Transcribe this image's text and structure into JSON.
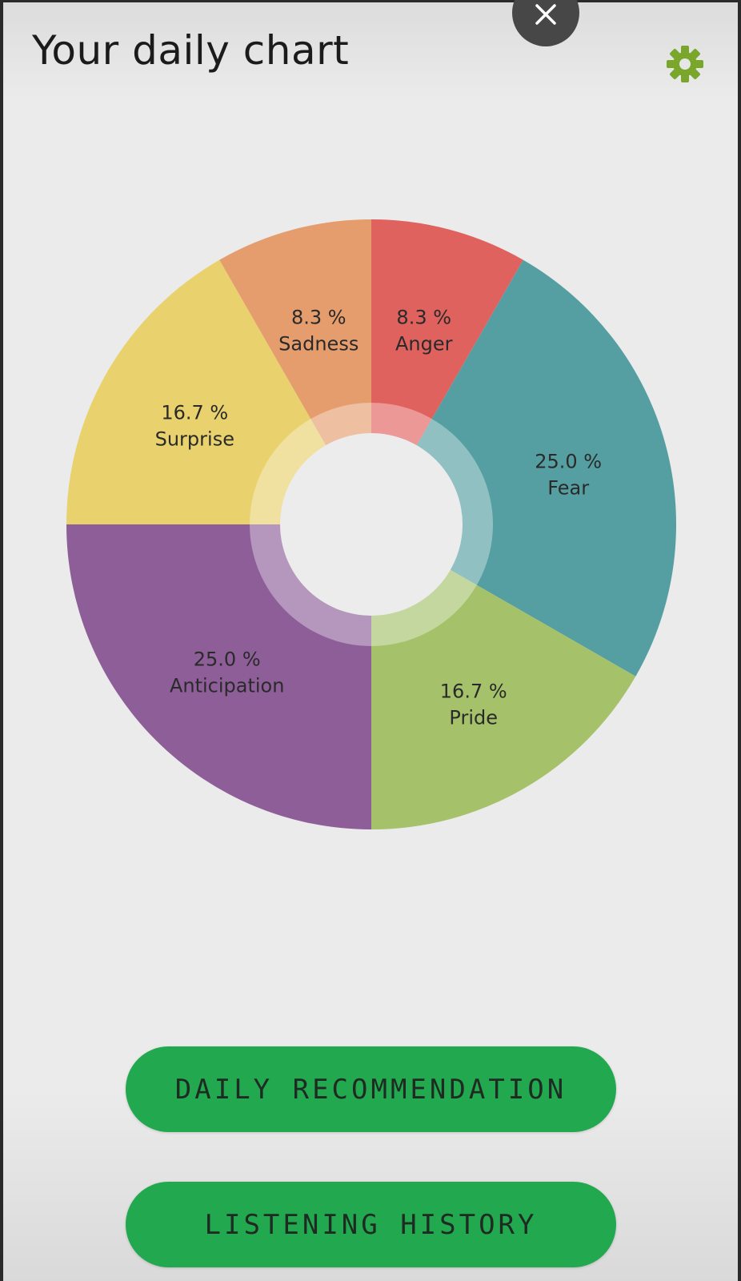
{
  "header": {
    "title": "Your daily chart"
  },
  "icons": {
    "settings": "gear-icon",
    "close": "close-icon"
  },
  "colors": {
    "accent_green": "#22a94f",
    "settings_icon": "#7aa72b"
  },
  "chart_data": {
    "type": "pie",
    "variant": "donut",
    "title": "",
    "categories": [
      "Anger",
      "Fear",
      "Pride",
      "Anticipation",
      "Surprise",
      "Sadness"
    ],
    "values": [
      8.3,
      25.0,
      16.7,
      25.0,
      16.7,
      8.3
    ],
    "value_labels": [
      "8.3 %",
      "25.0 %",
      "16.7 %",
      "25.0 %",
      "16.7 %",
      "8.3 %"
    ],
    "colors": [
      "#e0625f",
      "#559fa2",
      "#a5c26b",
      "#8e5e98",
      "#e9d26d",
      "#e59d6e"
    ],
    "start_direction": "12 o'clock",
    "order": "clockwise",
    "legend": "none"
  },
  "buttons": {
    "daily_recommendation": "DAILY RECOMMENDATION",
    "listening_history": "LISTENING HISTORY"
  }
}
